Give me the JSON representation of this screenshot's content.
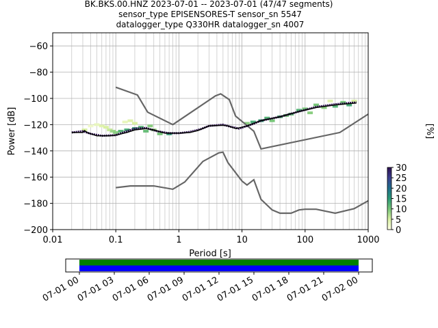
{
  "chart_data": {
    "type": "heatmap",
    "title_lines": [
      "BK.BKS.00.HNZ   2023-07-01 -- 2023-07-01  (47/47 segments)",
      "sensor_type EPISENSORES-T sensor_sn 5547",
      "datalogger_type Q330HR datalogger_sn 4007"
    ],
    "xlabel": "Period [s]",
    "ylabel": "Power [dB]",
    "x_scale": "log",
    "xlim": [
      0.01,
      1000
    ],
    "ylim": [
      -200,
      -50
    ],
    "grid": true,
    "x_ticks": [
      {
        "value": 0.01,
        "label": "0.01"
      },
      {
        "value": 0.1,
        "label": "0.1"
      },
      {
        "value": 1,
        "label": "1"
      },
      {
        "value": 10,
        "label": "10"
      },
      {
        "value": 100,
        "label": "100"
      },
      {
        "value": 1000,
        "label": "1000"
      }
    ],
    "y_ticks": [
      {
        "value": -60,
        "label": "−60"
      },
      {
        "value": -80,
        "label": "−80"
      },
      {
        "value": -100,
        "label": "−100"
      },
      {
        "value": -120,
        "label": "−120"
      },
      {
        "value": -140,
        "label": "−140"
      },
      {
        "value": -160,
        "label": "−160"
      },
      {
        "value": -180,
        "label": "−180"
      },
      {
        "value": -200,
        "label": "−200"
      }
    ],
    "colorbar": {
      "label": "[%]",
      "min": 0,
      "max": 30,
      "ticks": [
        {
          "value": 0,
          "label": "0"
        },
        {
          "value": 5,
          "label": "5"
        },
        {
          "value": 10,
          "label": "10"
        },
        {
          "value": 15,
          "label": "15"
        },
        {
          "value": 20,
          "label": "20"
        },
        {
          "value": 25,
          "label": "25"
        },
        {
          "value": 30,
          "label": "30"
        }
      ],
      "colors": [
        "#ffffe5",
        "#d9f0a3",
        "#78c679",
        "#2b9a77",
        "#1f6e8c",
        "#3b3f8f",
        "#2d0f4f"
      ]
    },
    "noise_models": [
      {
        "points": [
          [
            0.1,
            -91.5
          ],
          [
            0.22,
            -97.4
          ],
          [
            0.32,
            -110.5
          ],
          [
            0.8,
            -120
          ],
          [
            3.8,
            -98
          ],
          [
            4.6,
            -96.5
          ],
          [
            6.3,
            -101
          ],
          [
            7.9,
            -113.5
          ],
          [
            15.4,
            -125
          ],
          [
            20,
            -138.5
          ],
          [
            354.8,
            -126
          ],
          [
            1000,
            -112
          ]
        ]
      },
      {
        "points": [
          [
            0.1,
            -168
          ],
          [
            0.17,
            -166.7
          ],
          [
            0.4,
            -166.7
          ],
          [
            0.8,
            -169.2
          ],
          [
            1.24,
            -163.7
          ],
          [
            2.4,
            -148
          ],
          [
            4.3,
            -141.5
          ],
          [
            5,
            -141
          ],
          [
            6,
            -149
          ],
          [
            10,
            -163
          ],
          [
            12,
            -166
          ],
          [
            15.4,
            -162
          ],
          [
            20,
            -177
          ],
          [
            30,
            -185
          ],
          [
            40,
            -187.5
          ],
          [
            60,
            -187.5
          ],
          [
            80,
            -185
          ],
          [
            100,
            -184.5
          ],
          [
            150,
            -184.5
          ],
          [
            300,
            -187.5
          ],
          [
            600,
            -184
          ],
          [
            1000,
            -178
          ]
        ]
      }
    ],
    "median": [
      [
        0.02,
        -126
      ],
      [
        0.03,
        -126
      ],
      [
        0.032,
        -124.5
      ],
      [
        0.035,
        -126
      ],
      [
        0.05,
        -128.5
      ],
      [
        0.08,
        -128.5
      ],
      [
        0.1,
        -128
      ],
      [
        0.15,
        -126
      ],
      [
        0.2,
        -124
      ],
      [
        0.3,
        -123
      ],
      [
        0.4,
        -124
      ],
      [
        0.6,
        -126.5
      ],
      [
        1,
        -126.5
      ],
      [
        1.5,
        -126
      ],
      [
        2,
        -124.5
      ],
      [
        3,
        -121
      ],
      [
        5,
        -120.5
      ],
      [
        6,
        -121
      ],
      [
        8,
        -123
      ],
      [
        12,
        -121
      ],
      [
        20,
        -117
      ],
      [
        40,
        -114
      ],
      [
        80,
        -110
      ],
      [
        150,
        -107
      ],
      [
        300,
        -105
      ],
      [
        650,
        -103.5
      ]
    ],
    "mode": [
      [
        0.02,
        -126
      ],
      [
        0.03,
        -125
      ],
      [
        0.04,
        -127
      ],
      [
        0.06,
        -128.5
      ],
      [
        0.1,
        -128
      ],
      [
        0.15,
        -125
      ],
      [
        0.2,
        -123
      ],
      [
        0.3,
        -122.5
      ],
      [
        0.45,
        -125
      ],
      [
        0.7,
        -126.5
      ],
      [
        1,
        -126.5
      ],
      [
        1.5,
        -125.5
      ],
      [
        2.2,
        -123.5
      ],
      [
        3,
        -121
      ],
      [
        5,
        -120
      ],
      [
        6.5,
        -121.5
      ],
      [
        9,
        -123
      ],
      [
        14,
        -120
      ],
      [
        20,
        -117
      ],
      [
        40,
        -114
      ],
      [
        80,
        -110
      ],
      [
        150,
        -106.5
      ],
      [
        300,
        -104.5
      ],
      [
        650,
        -103
      ]
    ],
    "density": [
      {
        "period": 0.032,
        "power": -124,
        "percent": 5
      },
      {
        "period": 0.04,
        "power": -121,
        "percent": 2
      },
      {
        "period": 0.05,
        "power": -120,
        "percent": 3
      },
      {
        "period": 0.06,
        "power": -121,
        "percent": 4
      },
      {
        "period": 0.07,
        "power": -122,
        "percent": 5
      },
      {
        "period": 0.08,
        "power": -124,
        "percent": 6
      },
      {
        "period": 0.09,
        "power": -125,
        "percent": 8
      },
      {
        "period": 0.1,
        "power": -126,
        "percent": 9
      },
      {
        "period": 0.12,
        "power": -125,
        "percent": 12
      },
      {
        "period": 0.14,
        "power": -118,
        "percent": 3
      },
      {
        "period": 0.15,
        "power": -124,
        "percent": 13
      },
      {
        "period": 0.17,
        "power": -117,
        "percent": 4
      },
      {
        "period": 0.2,
        "power": -123,
        "percent": 14
      },
      {
        "period": 0.2,
        "power": -119,
        "percent": 5
      },
      {
        "period": 0.25,
        "power": -122,
        "percent": 12
      },
      {
        "period": 0.3,
        "power": -125,
        "percent": 11
      },
      {
        "period": 0.35,
        "power": -121,
        "percent": 9
      },
      {
        "period": 0.4,
        "power": -124,
        "percent": 8
      },
      {
        "period": 0.5,
        "power": -127,
        "percent": 10
      },
      {
        "period": 0.7,
        "power": -127,
        "percent": 14
      },
      {
        "period": 12,
        "power": -119,
        "percent": 9
      },
      {
        "period": 15,
        "power": -118,
        "percent": 13
      },
      {
        "period": 20,
        "power": -117,
        "percent": 14
      },
      {
        "period": 25,
        "power": -115,
        "percent": 12
      },
      {
        "period": 30,
        "power": -117,
        "percent": 10
      },
      {
        "period": 40,
        "power": -114,
        "percent": 12
      },
      {
        "period": 50,
        "power": -113,
        "percent": 10
      },
      {
        "period": 60,
        "power": -112,
        "percent": 11
      },
      {
        "period": 80,
        "power": -109,
        "percent": 12
      },
      {
        "period": 100,
        "power": -108,
        "percent": 10
      },
      {
        "period": 120,
        "power": -111,
        "percent": 9
      },
      {
        "period": 150,
        "power": -105,
        "percent": 10
      },
      {
        "period": 200,
        "power": -107,
        "percent": 9
      },
      {
        "period": 250,
        "power": -102,
        "percent": 4
      },
      {
        "period": 300,
        "power": -106,
        "percent": 12
      },
      {
        "period": 400,
        "power": -103,
        "percent": 10
      },
      {
        "period": 500,
        "power": -105,
        "percent": 13
      },
      {
        "period": 600,
        "power": -102,
        "percent": 5
      }
    ],
    "coverage": {
      "tick_labels": [
        "07-01 00",
        "07-01 03",
        "07-01 06",
        "07-01 09",
        "07-01 12",
        "07-01 15",
        "07-01 18",
        "07-01 21",
        "07-02 00"
      ],
      "data_color": "#008000",
      "used_color": "#0000ff",
      "start_fraction": 0.0,
      "end_fraction": 1.0
    }
  }
}
